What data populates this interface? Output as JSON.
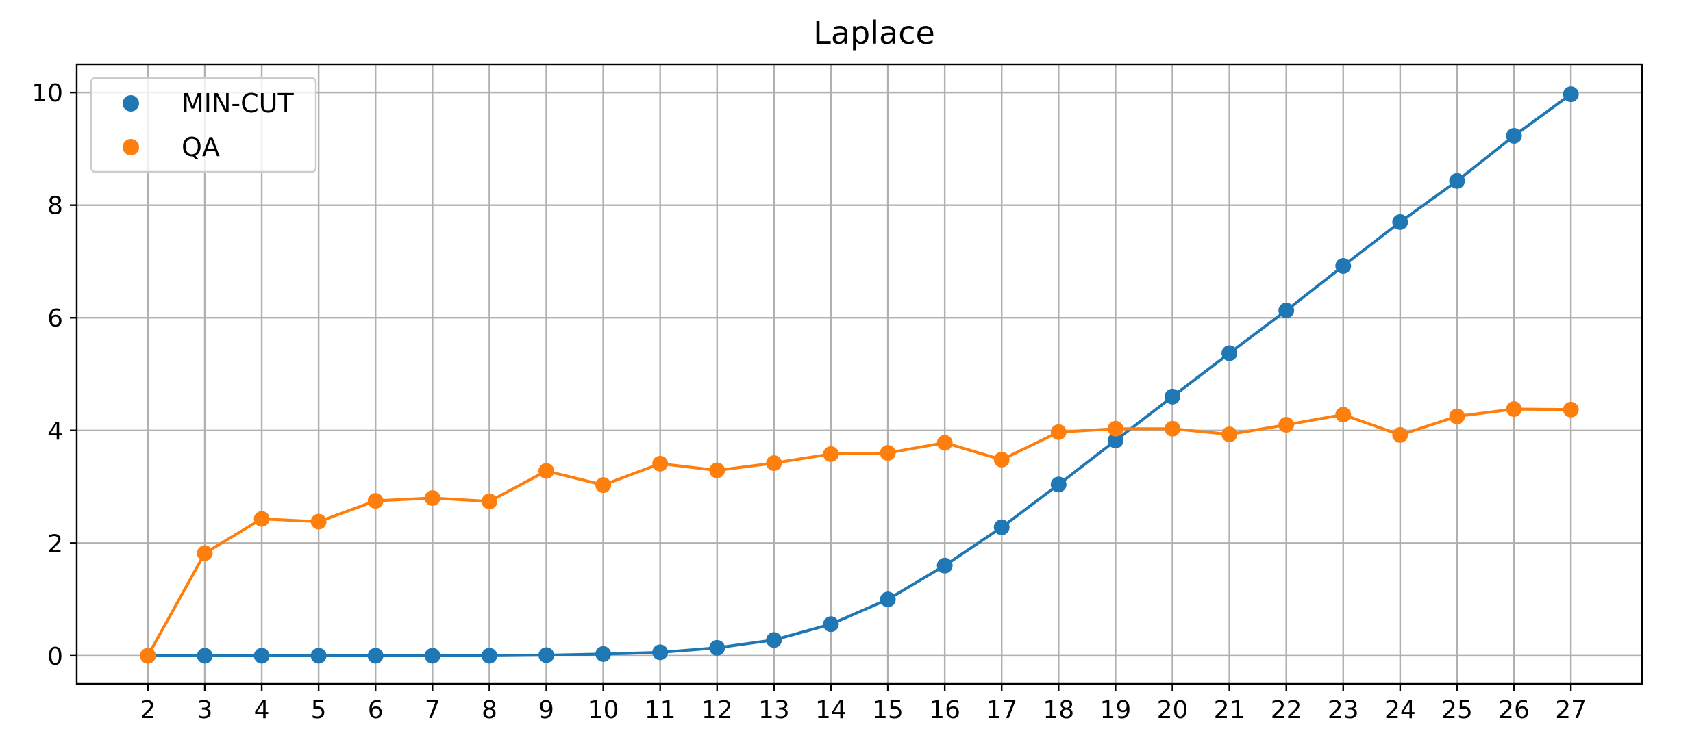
{
  "chart_data": {
    "type": "line",
    "title": "Laplace",
    "xlabel": "",
    "ylabel": "",
    "x": [
      2,
      3,
      4,
      5,
      6,
      7,
      8,
      9,
      10,
      11,
      12,
      13,
      14,
      15,
      16,
      17,
      18,
      19,
      20,
      21,
      22,
      23,
      24,
      25,
      26,
      27
    ],
    "x_ticks": [
      "2",
      "3",
      "4",
      "5",
      "6",
      "7",
      "8",
      "9",
      "10",
      "11",
      "12",
      "13",
      "14",
      "15",
      "16",
      "17",
      "18",
      "19",
      "20",
      "21",
      "22",
      "23",
      "24",
      "25",
      "26",
      "27"
    ],
    "y_ticks": [
      "0",
      "2",
      "4",
      "6",
      "8",
      "10"
    ],
    "xlim": [
      0.75,
      28.25
    ],
    "ylim": [
      -0.5,
      10.5
    ],
    "grid": true,
    "legend_position": "upper-left",
    "series": [
      {
        "name": "MIN-CUT",
        "color": "#1f77b4",
        "marker": "circle",
        "values": [
          0.0,
          0.0,
          0.0,
          0.0,
          0.0,
          0.0,
          0.0,
          0.01,
          0.03,
          0.06,
          0.14,
          0.28,
          0.56,
          1.0,
          1.6,
          2.28,
          3.04,
          3.82,
          4.6,
          5.37,
          6.13,
          6.92,
          7.7,
          8.43,
          9.23,
          9.97
        ]
      },
      {
        "name": "QA",
        "color": "#ff7f0e",
        "marker": "circle",
        "values": [
          0.0,
          1.82,
          2.43,
          2.38,
          2.75,
          2.8,
          2.74,
          3.28,
          3.03,
          3.41,
          3.29,
          3.42,
          3.58,
          3.6,
          3.78,
          3.48,
          3.97,
          4.03,
          4.03,
          3.93,
          4.1,
          4.28,
          3.92,
          4.25,
          4.38,
          4.37
        ]
      }
    ]
  }
}
